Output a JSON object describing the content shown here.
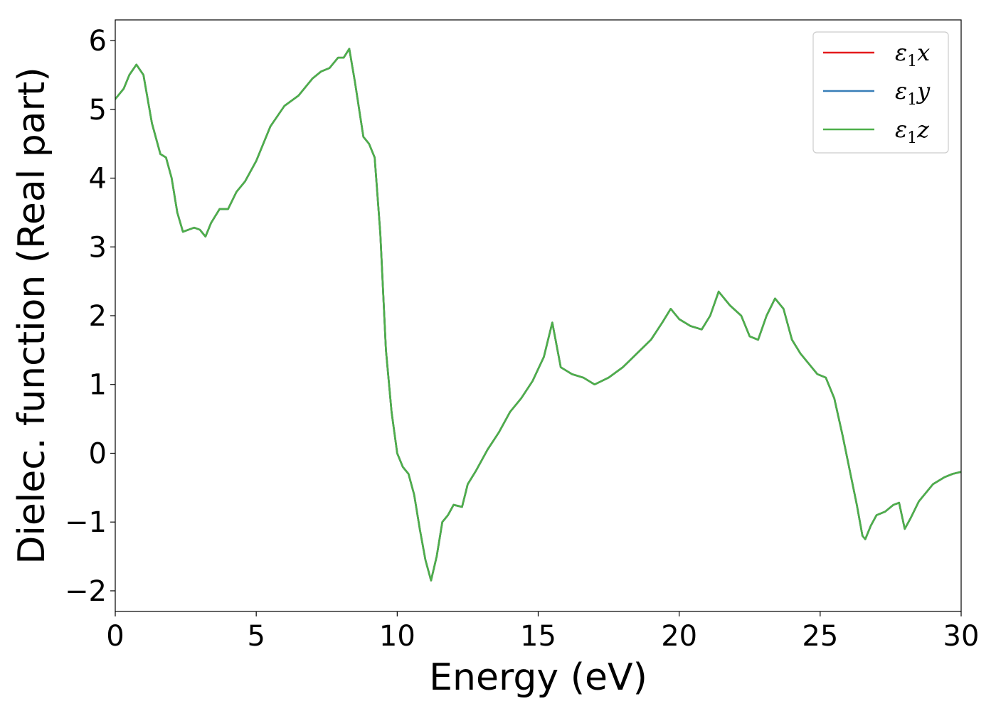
{
  "chart_data": {
    "type": "line",
    "xlabel": "Energy (eV)",
    "ylabel": "Dielec. function (Real part)",
    "xlim": [
      0,
      30
    ],
    "ylim": [
      -2.3,
      6.3
    ],
    "xticks": [
      0,
      5,
      10,
      15,
      20,
      25,
      30
    ],
    "yticks": [
      -2,
      -1,
      0,
      1,
      2,
      3,
      4,
      5,
      6
    ],
    "grid": false,
    "legend_position": "top-right",
    "series": [
      {
        "name": "ε₁x",
        "legend": {
          "base": "ε",
          "sub": "1",
          "suffix": "x"
        },
        "color": "#e41a1c",
        "x": [
          0,
          0.3,
          0.5,
          0.75,
          1.0,
          1.3,
          1.6,
          1.8,
          2.0,
          2.2,
          2.4,
          2.6,
          2.8,
          3.0,
          3.2,
          3.4,
          3.7,
          4.0,
          4.3,
          4.6,
          5.0,
          5.5,
          6.0,
          6.5,
          7.0,
          7.3,
          7.6,
          7.9,
          8.1,
          8.3,
          8.5,
          8.8,
          9.0,
          9.2,
          9.4,
          9.6,
          9.8,
          10.0,
          10.2,
          10.4,
          10.6,
          10.8,
          11.0,
          11.2,
          11.4,
          11.6,
          11.8,
          12.0,
          12.3,
          12.5,
          12.8,
          13.2,
          13.6,
          14.0,
          14.4,
          14.8,
          15.2,
          15.5,
          15.8,
          16.2,
          16.6,
          17.0,
          17.5,
          18.0,
          18.5,
          19.0,
          19.4,
          19.7,
          20.0,
          20.4,
          20.8,
          21.1,
          21.4,
          21.8,
          22.2,
          22.5,
          22.8,
          23.1,
          23.4,
          23.7,
          24.0,
          24.3,
          24.6,
          24.9,
          25.2,
          25.5,
          25.8,
          26.1,
          26.3,
          26.5,
          26.6,
          26.8,
          27.0,
          27.3,
          27.6,
          27.8,
          28.0,
          28.2,
          28.5,
          29.0,
          29.4,
          29.7,
          30.0
        ],
        "y": [
          5.15,
          5.3,
          5.5,
          5.65,
          5.5,
          4.8,
          4.35,
          4.3,
          4.0,
          3.5,
          3.22,
          3.25,
          3.28,
          3.25,
          3.15,
          3.35,
          3.55,
          3.55,
          3.8,
          3.95,
          4.25,
          4.75,
          5.05,
          5.2,
          5.45,
          5.55,
          5.6,
          5.75,
          5.75,
          5.88,
          5.4,
          4.6,
          4.5,
          4.3,
          3.2,
          1.5,
          0.6,
          0.0,
          -0.2,
          -0.3,
          -0.6,
          -1.1,
          -1.55,
          -1.85,
          -1.5,
          -1.0,
          -0.9,
          -0.75,
          -0.78,
          -0.45,
          -0.25,
          0.05,
          0.3,
          0.6,
          0.8,
          1.05,
          1.4,
          1.9,
          1.25,
          1.15,
          1.1,
          1.0,
          1.1,
          1.25,
          1.45,
          1.65,
          1.9,
          2.1,
          1.95,
          1.85,
          1.8,
          2.0,
          2.35,
          2.15,
          2.0,
          1.7,
          1.65,
          2.0,
          2.25,
          2.1,
          1.65,
          1.45,
          1.3,
          1.15,
          1.1,
          0.8,
          0.25,
          -0.35,
          -0.75,
          -1.2,
          -1.25,
          -1.05,
          -0.9,
          -0.85,
          -0.75,
          -0.72,
          -1.1,
          -0.95,
          -0.7,
          -0.45,
          -0.35,
          -0.3,
          -0.27
        ]
      },
      {
        "name": "ε₁y",
        "legend": {
          "base": "ε",
          "sub": "1",
          "suffix": "y"
        },
        "color": "#377eb8",
        "x": [
          0,
          0.3,
          0.5,
          0.75,
          1.0,
          1.3,
          1.6,
          1.8,
          2.0,
          2.2,
          2.4,
          2.6,
          2.8,
          3.0,
          3.2,
          3.4,
          3.7,
          4.0,
          4.3,
          4.6,
          5.0,
          5.5,
          6.0,
          6.5,
          7.0,
          7.3,
          7.6,
          7.9,
          8.1,
          8.3,
          8.5,
          8.8,
          9.0,
          9.2,
          9.4,
          9.6,
          9.8,
          10.0,
          10.2,
          10.4,
          10.6,
          10.8,
          11.0,
          11.2,
          11.4,
          11.6,
          11.8,
          12.0,
          12.3,
          12.5,
          12.8,
          13.2,
          13.6,
          14.0,
          14.4,
          14.8,
          15.2,
          15.5,
          15.8,
          16.2,
          16.6,
          17.0,
          17.5,
          18.0,
          18.5,
          19.0,
          19.4,
          19.7,
          20.0,
          20.4,
          20.8,
          21.1,
          21.4,
          21.8,
          22.2,
          22.5,
          22.8,
          23.1,
          23.4,
          23.7,
          24.0,
          24.3,
          24.6,
          24.9,
          25.2,
          25.5,
          25.8,
          26.1,
          26.3,
          26.5,
          26.6,
          26.8,
          27.0,
          27.3,
          27.6,
          27.8,
          28.0,
          28.2,
          28.5,
          29.0,
          29.4,
          29.7,
          30.0
        ],
        "y": [
          5.15,
          5.3,
          5.5,
          5.65,
          5.5,
          4.8,
          4.35,
          4.3,
          4.0,
          3.5,
          3.22,
          3.25,
          3.28,
          3.25,
          3.15,
          3.35,
          3.55,
          3.55,
          3.8,
          3.95,
          4.25,
          4.75,
          5.05,
          5.2,
          5.45,
          5.55,
          5.6,
          5.75,
          5.75,
          5.88,
          5.4,
          4.6,
          4.5,
          4.3,
          3.2,
          1.5,
          0.6,
          0.0,
          -0.2,
          -0.3,
          -0.6,
          -1.1,
          -1.55,
          -1.85,
          -1.5,
          -1.0,
          -0.9,
          -0.75,
          -0.78,
          -0.45,
          -0.25,
          0.05,
          0.3,
          0.6,
          0.8,
          1.05,
          1.4,
          1.9,
          1.25,
          1.15,
          1.1,
          1.0,
          1.1,
          1.25,
          1.45,
          1.65,
          1.9,
          2.1,
          1.95,
          1.85,
          1.8,
          2.0,
          2.35,
          2.15,
          2.0,
          1.7,
          1.65,
          2.0,
          2.25,
          2.1,
          1.65,
          1.45,
          1.3,
          1.15,
          1.1,
          0.8,
          0.25,
          -0.35,
          -0.75,
          -1.2,
          -1.25,
          -1.05,
          -0.9,
          -0.85,
          -0.75,
          -0.72,
          -1.1,
          -0.95,
          -0.7,
          -0.45,
          -0.35,
          -0.3,
          -0.27
        ]
      },
      {
        "name": "ε₁z",
        "legend": {
          "base": "ε",
          "sub": "1",
          "suffix": "z"
        },
        "color": "#4daf4a",
        "x": [
          0,
          0.3,
          0.5,
          0.75,
          1.0,
          1.3,
          1.6,
          1.8,
          2.0,
          2.2,
          2.4,
          2.6,
          2.8,
          3.0,
          3.2,
          3.4,
          3.7,
          4.0,
          4.3,
          4.6,
          5.0,
          5.5,
          6.0,
          6.5,
          7.0,
          7.3,
          7.6,
          7.9,
          8.1,
          8.3,
          8.5,
          8.8,
          9.0,
          9.2,
          9.4,
          9.6,
          9.8,
          10.0,
          10.2,
          10.4,
          10.6,
          10.8,
          11.0,
          11.2,
          11.4,
          11.6,
          11.8,
          12.0,
          12.3,
          12.5,
          12.8,
          13.2,
          13.6,
          14.0,
          14.4,
          14.8,
          15.2,
          15.5,
          15.8,
          16.2,
          16.6,
          17.0,
          17.5,
          18.0,
          18.5,
          19.0,
          19.4,
          19.7,
          20.0,
          20.4,
          20.8,
          21.1,
          21.4,
          21.8,
          22.2,
          22.5,
          22.8,
          23.1,
          23.4,
          23.7,
          24.0,
          24.3,
          24.6,
          24.9,
          25.2,
          25.5,
          25.8,
          26.1,
          26.3,
          26.5,
          26.6,
          26.8,
          27.0,
          27.3,
          27.6,
          27.8,
          28.0,
          28.2,
          28.5,
          29.0,
          29.4,
          29.7,
          30.0
        ],
        "y": [
          5.15,
          5.3,
          5.5,
          5.65,
          5.5,
          4.8,
          4.35,
          4.3,
          4.0,
          3.5,
          3.22,
          3.25,
          3.28,
          3.25,
          3.15,
          3.35,
          3.55,
          3.55,
          3.8,
          3.95,
          4.25,
          4.75,
          5.05,
          5.2,
          5.45,
          5.55,
          5.6,
          5.75,
          5.75,
          5.88,
          5.4,
          4.6,
          4.5,
          4.3,
          3.2,
          1.5,
          0.6,
          0.0,
          -0.2,
          -0.3,
          -0.6,
          -1.1,
          -1.55,
          -1.85,
          -1.5,
          -1.0,
          -0.9,
          -0.75,
          -0.78,
          -0.45,
          -0.25,
          0.05,
          0.3,
          0.6,
          0.8,
          1.05,
          1.4,
          1.9,
          1.25,
          1.15,
          1.1,
          1.0,
          1.1,
          1.25,
          1.45,
          1.65,
          1.9,
          2.1,
          1.95,
          1.85,
          1.8,
          2.0,
          2.35,
          2.15,
          2.0,
          1.7,
          1.65,
          2.0,
          2.25,
          2.1,
          1.65,
          1.45,
          1.3,
          1.15,
          1.1,
          0.8,
          0.25,
          -0.35,
          -0.75,
          -1.2,
          -1.25,
          -1.05,
          -0.9,
          -0.85,
          -0.75,
          -0.72,
          -1.1,
          -0.95,
          -0.7,
          -0.45,
          -0.35,
          -0.3,
          -0.27
        ]
      }
    ]
  }
}
